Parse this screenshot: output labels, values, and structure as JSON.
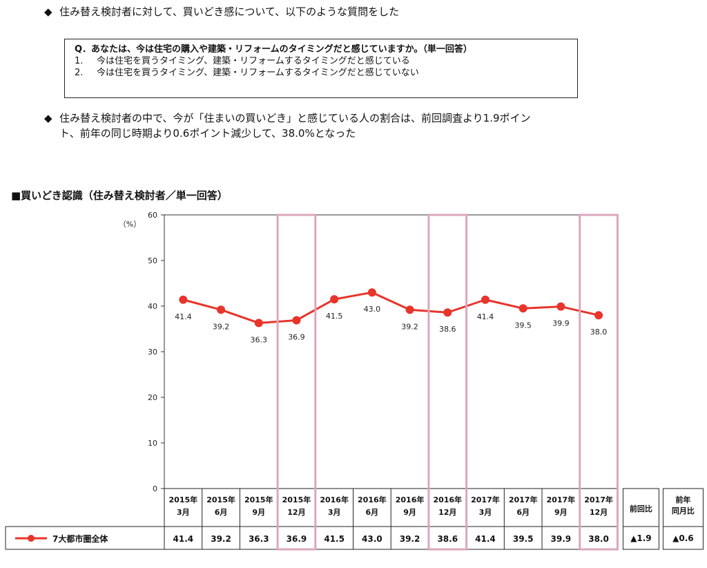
{
  "bullets": [
    {
      "mark": "◆",
      "text": "住み替え検討者に対して、買いどき感について、以下のような質問をした"
    },
    {
      "mark": "◆",
      "lines": [
        "住み替え検討者の中で、今が「住まいの買いどき」と感じている人の割合は、前回調査より1.9ポイン",
        "ト、前年の同じ時期より0.6ポイント減少して、38.0%となった"
      ]
    }
  ],
  "question": {
    "q": "Q．あなたは、今は住宅の購入や建築・リフォームのタイミングだと感じていますか。（単一回答）",
    "options": [
      {
        "num": "1.",
        "text": "今は住宅を買うタイミング、建築・リフォームするタイミングだと感じている"
      },
      {
        "num": "2.",
        "text": "今は住宅を買うタイミング、建築・リフォームするタイミングだと感じていない"
      }
    ]
  },
  "section_title": "■買いどき認識（住み替え検討者／単一回答）",
  "colors": {
    "line": "#e8342a",
    "highlight": "#dba7bd",
    "grid": "#333333"
  },
  "chart_data": {
    "type": "line",
    "y_unit": "（%）",
    "ylim": [
      0,
      60
    ],
    "yticks": [
      0,
      10,
      20,
      30,
      40,
      50,
      60
    ],
    "categories": [
      [
        "2015年",
        "3月"
      ],
      [
        "2015年",
        "6月"
      ],
      [
        "2015年",
        "9月"
      ],
      [
        "2015年",
        "12月"
      ],
      [
        "2016年",
        "3月"
      ],
      [
        "2016年",
        "6月"
      ],
      [
        "2016年",
        "9月"
      ],
      [
        "2016年",
        "12月"
      ],
      [
        "2017年",
        "3月"
      ],
      [
        "2017年",
        "6月"
      ],
      [
        "2017年",
        "9月"
      ],
      [
        "2017年",
        "12月"
      ]
    ],
    "series": [
      {
        "name": "7大都市圏全体",
        "values": [
          41.4,
          39.2,
          36.3,
          36.9,
          41.5,
          43.0,
          39.2,
          38.6,
          41.4,
          39.5,
          39.9,
          38.0
        ],
        "labels": [
          "41.4",
          "39.2",
          "36.3",
          "36.9",
          "41.5",
          "43.0",
          "39.2",
          "38.6",
          "41.4",
          "39.5",
          "39.9",
          "38.0"
        ]
      }
    ],
    "highlighted_categories": [
      3,
      7,
      11
    ],
    "extra_columns": [
      {
        "header": [
          "前回比"
        ],
        "value": "▲1.9"
      },
      {
        "header": [
          "前年",
          "同月比"
        ],
        "value": "▲0.6"
      }
    ]
  }
}
